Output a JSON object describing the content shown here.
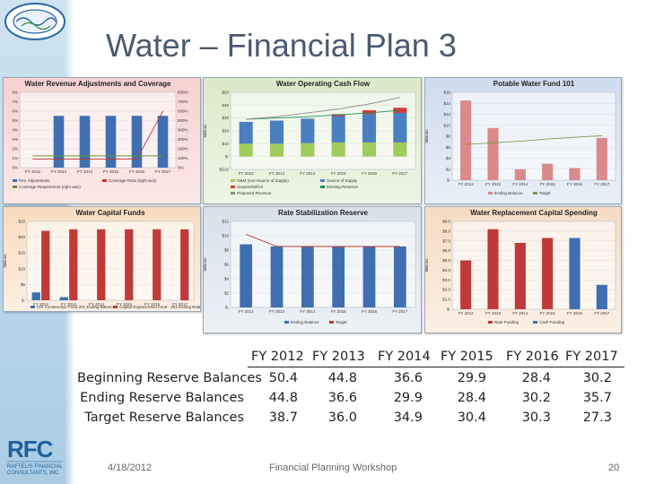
{
  "slide": {
    "title": "Water – Financial Plan 3",
    "date": "4/18/2012",
    "footer_center": "Financial Planning Workshop",
    "page_number": "20"
  },
  "logos": {
    "top_left": "El Toro Water District seal",
    "bottom_left": "RFC Raftelis Financial Consultants, Inc"
  },
  "fy_labels": [
    "FY 2012",
    "FY 2013",
    "FY 2014",
    "FY 2015",
    "FY 2016",
    "FY 2017"
  ],
  "chart_data": [
    {
      "type": "bar",
      "title": "Water Revenue Adjustments and Coverage",
      "categories": [
        "FY 2012",
        "FY 2013",
        "FY 2014",
        "FY 2015",
        "FY 2016",
        "FY 2017"
      ],
      "series": [
        {
          "name": "Rev. Adjustments",
          "values": [
            0,
            5.5,
            5.5,
            5.5,
            5.5,
            5.5
          ]
        },
        {
          "name": "Coverage Ratio (right axis)",
          "values": [
            90,
            90,
            90,
            90,
            90,
            600
          ]
        },
        {
          "name": "Coverage Requirement (right axis)",
          "values": [
            125,
            125,
            125,
            125,
            125,
            125
          ]
        }
      ],
      "y_ticks": [
        "0%",
        "1%",
        "2%",
        "3%",
        "4%",
        "5%",
        "6%",
        "7%",
        "8%"
      ],
      "y2_ticks": [
        "0%",
        "100%",
        "200%",
        "300%",
        "400%",
        "500%",
        "600%",
        "700%",
        "800%"
      ],
      "ylim": [
        0,
        8
      ],
      "y2lim": [
        0,
        800
      ],
      "legend": [
        "Rev. Adjustments",
        "Coverage Ratio (right axis)",
        "Coverage Requirement (right axis)"
      ],
      "color": "#3f6fb0"
    },
    {
      "type": "bar",
      "title": "Water Operating Cash Flow",
      "ylabel": "Millions",
      "categories": [
        "FY 2012",
        "FY 2013",
        "FY 2014",
        "FY 2015",
        "FY 2016",
        "FY 2017"
      ],
      "series": [
        {
          "name": "O&M (non-Source of Supply)",
          "values": [
            10,
            10,
            10.5,
            11,
            11,
            11
          ]
        },
        {
          "name": "Source of Supply",
          "values": [
            17,
            18,
            19,
            20.5,
            22,
            23
          ]
        },
        {
          "name": "Surplus/Deficit",
          "values": [
            0,
            0,
            0,
            1.5,
            3,
            4
          ]
        },
        {
          "name": "Existing Revenue",
          "values": [
            29,
            30,
            31,
            32.5,
            34,
            36
          ]
        },
        {
          "name": "Proposed Revenue",
          "values": [
            29,
            31,
            34,
            37,
            41,
            46
          ]
        }
      ],
      "y_ticks": [
        "$(10)",
        "$-",
        "$10",
        "$20",
        "$30",
        "$40",
        "$50"
      ],
      "ylim": [
        -10,
        50
      ],
      "legend": [
        "O&M (non-Source of Supply)",
        "Source of Supply",
        "Surplus/Deficit",
        "Existing Revenue",
        "Proposed Revenue"
      ]
    },
    {
      "type": "bar",
      "title": "Potable Water Fund 101",
      "ylabel": "Millions",
      "categories": [
        "FY 2012",
        "FY 2013",
        "FY 2014",
        "FY 2015",
        "FY 2016",
        "FY 2017"
      ],
      "series": [
        {
          "name": "Ending Balance",
          "values": [
            14.5,
            9.5,
            2,
            3,
            2.2,
            7.7
          ]
        },
        {
          "name": "Target",
          "values": [
            6.5,
            6.8,
            7.1,
            7.5,
            7.8,
            8.1
          ]
        }
      ],
      "y_ticks": [
        "$-",
        "$2",
        "$4",
        "$6",
        "$8",
        "$10",
        "$12",
        "$14",
        "$16"
      ],
      "ylim": [
        0,
        16
      ],
      "legend": [
        "Ending Balance",
        "Target"
      ]
    },
    {
      "type": "bar",
      "title": "Water Capital Funds",
      "ylabel": "Millions",
      "categories": [
        "FY 2012",
        "FY 2013",
        "FY 2014",
        "FY 2015",
        "FY 2016",
        "FY 2017"
      ],
      "series": [
        {
          "name": "CIP Construction Fund 201 Ending Balance",
          "values": [
            2.5,
            1,
            0,
            0,
            0,
            0
          ]
        },
        {
          "name": "Capital Replacement Fund - 301 Ending Balance",
          "values": [
            22,
            22.5,
            22.5,
            22.5,
            22.5,
            22.5
          ]
        }
      ],
      "y_ticks": [
        "$-",
        "$5",
        "$10",
        "$15",
        "$20",
        "$25"
      ],
      "ylim": [
        0,
        25
      ],
      "legend": [
        "CIP Construction Fund 201 Ending Balance",
        "Capital Replacement Fund - 301 Ending Balance"
      ]
    },
    {
      "type": "bar",
      "title": "Rate Stabilization Reserve",
      "ylabel": "Millions",
      "categories": [
        "FY 2012",
        "FY 2013",
        "FY 2014",
        "FY 2015",
        "FY 2016",
        "FY 2017"
      ],
      "series": [
        {
          "name": "Ending Balance",
          "values": [
            8.8,
            8.5,
            8.5,
            8.5,
            8.5,
            8.5
          ]
        },
        {
          "name": "Target",
          "values": [
            10.2,
            8.5,
            8.5,
            8.5,
            8.5,
            8.5
          ]
        }
      ],
      "y_ticks": [
        "$-",
        "$2",
        "$4",
        "$6",
        "$8",
        "$10",
        "$12"
      ],
      "ylim": [
        0,
        12
      ],
      "legend": [
        "Ending Balance",
        "Target"
      ]
    },
    {
      "type": "bar",
      "title": "Water Replacement Capital Spending",
      "ylabel": "Millions",
      "categories": [
        "FY 2012",
        "FY 2013",
        "FY 2014",
        "FY 2015",
        "FY 2016",
        "FY 2017"
      ],
      "series": [
        {
          "name": "Rate Funding",
          "values": [
            5,
            8.2,
            6.8,
            7.3,
            7.3,
            2.5
          ]
        },
        {
          "name": "Cash Funding",
          "values": [
            0,
            0,
            0,
            0,
            0,
            0
          ]
        }
      ],
      "y_ticks": [
        "$-",
        "$1.0",
        "$2.0",
        "$3.0",
        "$4.0",
        "$5.0",
        "$6.0",
        "$7.0",
        "$8.0",
        "$9.0"
      ],
      "ylim": [
        0,
        9
      ],
      "legend": [
        "Rate Funding",
        "Cash Funding"
      ]
    }
  ],
  "reserve_table": {
    "columns": [
      "FY 2012",
      "FY 2013",
      "FY 2014",
      "FY 2015",
      "FY 2016",
      "FY 2017"
    ],
    "rows": [
      {
        "label": "Beginning Reserve Balances",
        "values": [
          "50.4",
          "44.8",
          "36.6",
          "29.9",
          "28.4",
          "30.2"
        ]
      },
      {
        "label": "Ending Reserve Balances",
        "values": [
          "44.8",
          "36.6",
          "29.9",
          "28.4",
          "30.2",
          "35.7"
        ]
      },
      {
        "label": "Target Reserve Balances",
        "values": [
          "38.7",
          "36.0",
          "34.9",
          "30.4",
          "30.3",
          "27.3"
        ]
      }
    ]
  }
}
